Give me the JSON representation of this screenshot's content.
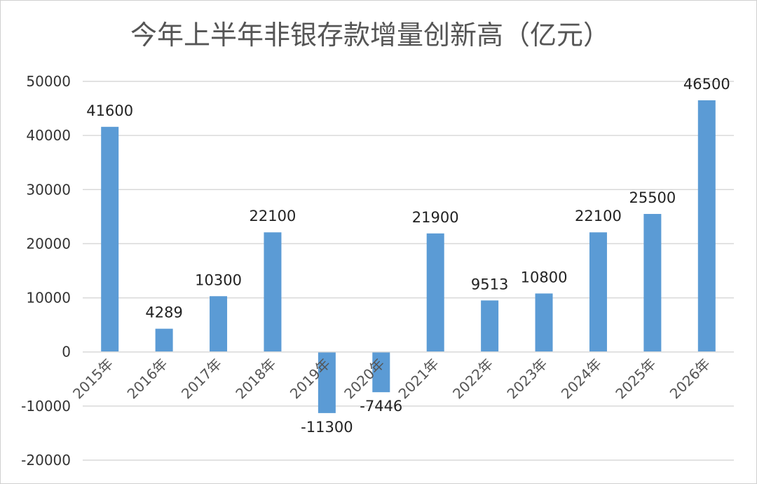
{
  "chart_data": {
    "type": "bar",
    "title": "今年上半年非银存款增量创新高（亿元）",
    "categories": [
      "2015年",
      "2016年",
      "2017年",
      "2018年",
      "2019年",
      "2020年",
      "2021年",
      "2022年",
      "2023年",
      "2024年",
      "2025年",
      "2026年"
    ],
    "values": [
      41600,
      4289,
      10300,
      22100,
      -11300,
      -7446,
      21900,
      9513,
      10800,
      22100,
      25500,
      46500
    ],
    "data_labels": [
      "41600",
      "4289",
      "10300",
      "22100",
      "-11300",
      "-7446",
      "21900",
      "9513",
      "10800",
      "22100",
      "25500",
      "46500"
    ],
    "yticks": [
      "50000",
      "40000",
      "30000",
      "20000",
      "10000",
      "0",
      "-10000",
      "-20000"
    ],
    "ytick_values": [
      50000,
      40000,
      30000,
      20000,
      10000,
      0,
      -10000,
      -20000
    ],
    "ylim": [
      -20000,
      50000
    ],
    "xlabel": "",
    "ylabel": "",
    "grid": true,
    "legend": "none",
    "bar_color": "#5b9bd5"
  }
}
